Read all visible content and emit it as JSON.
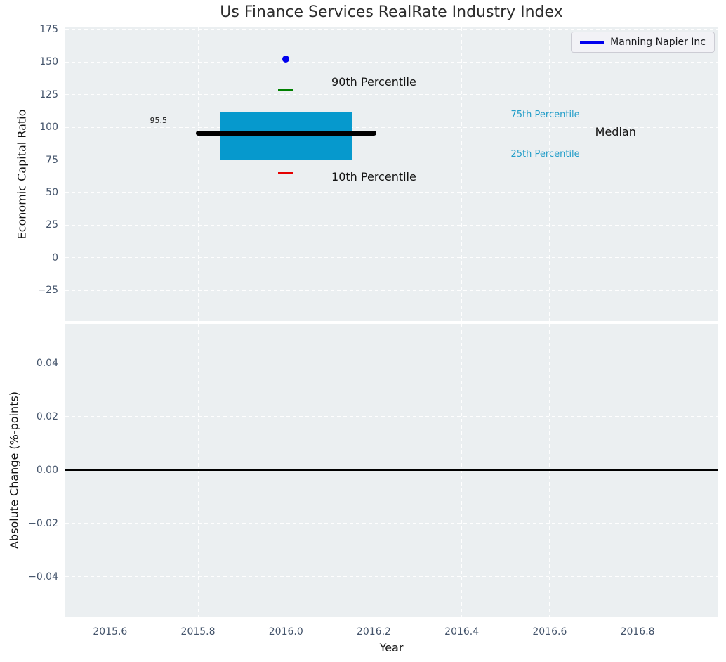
{
  "title": "Us Finance Services RealRate Industry Index",
  "legend": {
    "label": "Manning Napier Inc",
    "line_color": "#0000ee",
    "position": "upper right"
  },
  "colors": {
    "plot_background": "#ebeff1",
    "grid": "#ffffff",
    "tick_label": "#44546b",
    "zero_line": "#000000"
  },
  "chart_data": [
    {
      "type": "boxplot",
      "panel": "top",
      "ylabel": "Economic Capital Ratio",
      "xlim": [
        2015.498,
        2016.982
      ],
      "ylim": [
        -48.6,
        176.6
      ],
      "grid": "on",
      "xticks": [
        2015.6,
        2015.8,
        2016.0,
        2016.2,
        2016.4,
        2016.6,
        2016.8
      ],
      "xtick_labels_visible": false,
      "yticks": [
        175,
        150,
        125,
        100,
        75,
        50,
        25,
        0,
        -25
      ],
      "ytick_labels": [
        "175",
        "150",
        "125",
        "100",
        "75",
        "50",
        "25",
        "0",
        "−25"
      ],
      "boxes": [
        {
          "x": 2016.0,
          "box_left": 2015.85,
          "box_right": 2016.15,
          "p10": 65.0,
          "q1": 74.5,
          "median": 95.5,
          "q3": 112.0,
          "p90": 128.5,
          "median_line_left": 2015.8,
          "median_line_right": 2016.2,
          "box_color": "#0699cd",
          "median_color": "#000000",
          "whisker_color": "#888888",
          "p90_cap_color": "#008000",
          "p10_cap_color": "#e50000"
        }
      ],
      "series": [
        {
          "name": "Manning Napier Inc",
          "type": "scatter",
          "color": "#0000ee",
          "points": [
            {
              "x": 2016.0,
              "y": 152.5
            }
          ]
        }
      ],
      "annotations": [
        {
          "text": "95.5",
          "x": 2015.71,
          "y": 105.0,
          "color": "#141414",
          "size": 11
        },
        {
          "text": "90th Percentile",
          "x": 2016.2,
          "y": 134.5,
          "color": "#141414",
          "size": 16
        },
        {
          "text": "10th Percentile",
          "x": 2016.2,
          "y": 62.0,
          "color": "#141414",
          "size": 16
        },
        {
          "text": "75th Percentile",
          "x": 2016.59,
          "y": 109.0,
          "color": "#249ec9",
          "size": 13
        },
        {
          "text": "25th Percentile",
          "x": 2016.59,
          "y": 79.0,
          "color": "#249ec9",
          "size": 13
        },
        {
          "text": "Median",
          "x": 2016.75,
          "y": 96.5,
          "color": "#141414",
          "size": 16
        }
      ]
    },
    {
      "type": "line",
      "panel": "bottom",
      "xlabel": "Year",
      "ylabel": "Absolute Change (%-points)",
      "xlim": [
        2015.498,
        2016.982
      ],
      "ylim": [
        -0.055,
        0.0547
      ],
      "grid": "on",
      "xticks": [
        2015.6,
        2015.8,
        2016.0,
        2016.2,
        2016.4,
        2016.6,
        2016.8
      ],
      "xtick_labels": [
        "2015.6",
        "2015.8",
        "2016.0",
        "2016.2",
        "2016.4",
        "2016.6",
        "2016.8"
      ],
      "yticks": [
        0.04,
        0.02,
        0.0,
        -0.02,
        -0.04
      ],
      "ytick_labels": [
        "0.04",
        "0.02",
        "0.00",
        "−0.02",
        "−0.04"
      ],
      "zero_line": 0.0,
      "series": []
    }
  ]
}
